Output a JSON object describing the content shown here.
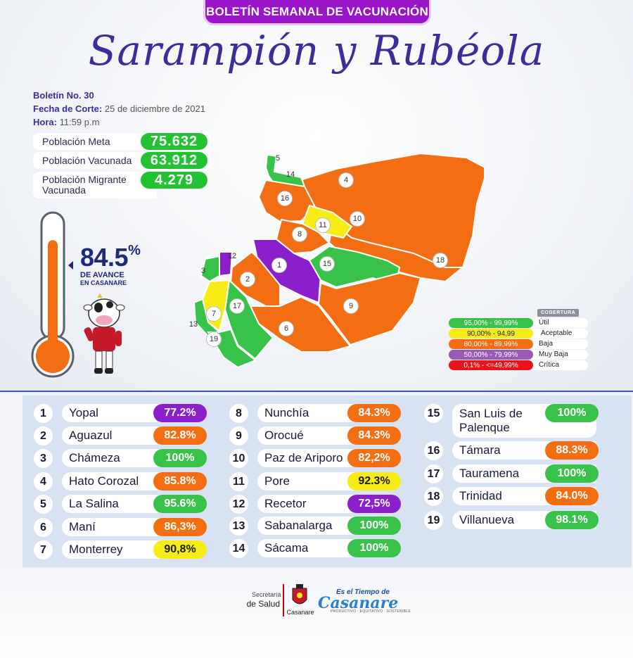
{
  "banner": "BOLETÍN SEMANAL DE VACUNACIÓN",
  "title": "Sarampión y Rubéola",
  "info": {
    "boletin_label": "Boletín No.",
    "boletin_value": "30",
    "fecha_label": "Fecha de Corte:",
    "fecha_value": "25 de diciembre de 2021",
    "hora_label": "Hora:",
    "hora_value": "11:59 p.m"
  },
  "population": {
    "meta_label": "Población Meta",
    "meta_value": "75.632",
    "vacunada_label": "Población Vacunada",
    "vacunada_value": "63.912",
    "migrante_label_1": "Población Migrante",
    "migrante_label_2": "Vacunada",
    "migrante_value": "4.279"
  },
  "progress": {
    "value": "84.5",
    "unit": "%",
    "label1": "DE AVANCE",
    "label2": "EN CASANARE",
    "fill_fraction": 0.845
  },
  "legend": {
    "header": "COBERTURA",
    "items": [
      {
        "range": "95,00% - 99,99%",
        "label": "Útil",
        "color": "#39c24a"
      },
      {
        "range": "90,00% - 94,99",
        "label": "Aceptable",
        "color": "#f7ec16"
      },
      {
        "range": "80,00% - 89,99%",
        "label": "Baja",
        "color": "#f36d12"
      },
      {
        "range": "50,00% - 79,99%",
        "label": "Muy Baja",
        "color": "#9b59b6"
      },
      {
        "range": "0,1% - <=49,99%",
        "label": "Crítica",
        "color": "#e8141b"
      }
    ]
  },
  "map_labels": [
    "1",
    "2",
    "3",
    "4",
    "5",
    "6",
    "7",
    "8",
    "9",
    "10",
    "11",
    "12",
    "13",
    "14",
    "15",
    "16",
    "17",
    "18",
    "19"
  ],
  "municipalities": [
    {
      "n": "1",
      "name": "Yopal",
      "pct": "77.2%",
      "cls": "purple"
    },
    {
      "n": "2",
      "name": "Aguazul",
      "pct": "82.8%",
      "cls": "orange"
    },
    {
      "n": "3",
      "name": "Chámeza",
      "pct": "100%",
      "cls": "green"
    },
    {
      "n": "4",
      "name": "Hato Corozal",
      "pct": "85.8%",
      "cls": "orange"
    },
    {
      "n": "5",
      "name": "La Salina",
      "pct": "95.6%",
      "cls": "green"
    },
    {
      "n": "6",
      "name": "Maní",
      "pct": "86,3%",
      "cls": "orange"
    },
    {
      "n": "7",
      "name": "Monterrey",
      "pct": "90,8%",
      "cls": "yellow"
    },
    {
      "n": "8",
      "name": "Nunchía",
      "pct": "84.3%",
      "cls": "orange"
    },
    {
      "n": "9",
      "name": "Orocué",
      "pct": "84.3%",
      "cls": "orange"
    },
    {
      "n": "10",
      "name": "Paz de Ariporo",
      "pct": "82,2%",
      "cls": "orange"
    },
    {
      "n": "11",
      "name": "Pore",
      "pct": "92.3%",
      "cls": "yellow"
    },
    {
      "n": "12",
      "name": "Recetor",
      "pct": "72,5%",
      "cls": "purple"
    },
    {
      "n": "13",
      "name": "Sabanalarga",
      "pct": "100%",
      "cls": "green"
    },
    {
      "n": "14",
      "name": "Sácama",
      "pct": "100%",
      "cls": "green"
    },
    {
      "n": "15",
      "name": "San Luis de Palenque",
      "pct": "100%",
      "cls": "green"
    },
    {
      "n": "16",
      "name": "Támara",
      "pct": "88.3%",
      "cls": "orange"
    },
    {
      "n": "17",
      "name": "Tauramena",
      "pct": "100%",
      "cls": "green"
    },
    {
      "n": "18",
      "name": "Trinidad",
      "pct": "84.0%",
      "cls": "orange"
    },
    {
      "n": "19",
      "name": "Villanueva",
      "pct": "98.1%",
      "cls": "green"
    }
  ],
  "footer": {
    "secretaria": "Secretaría",
    "salud": "de Salud",
    "casanare": "Casanare",
    "logo_top": "Es el Tiempo de",
    "logo_main": "Casanare",
    "logo_sub": "PRODUCTIVO · EQUITATIVO · SOSTENIBLE"
  }
}
